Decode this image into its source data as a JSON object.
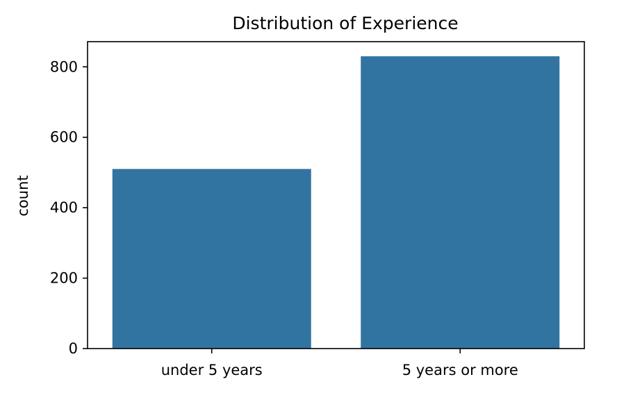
{
  "chart_data": {
    "type": "bar",
    "title": "Distribution of Experience",
    "xlabel": "",
    "ylabel": "count",
    "categories": [
      "under 5 years",
      "5 years or more"
    ],
    "values": [
      510,
      830
    ],
    "ylim": [
      0,
      871.5
    ],
    "yticks": [
      0,
      200,
      400,
      600,
      800
    ],
    "bar_color": "#3274a1",
    "grid": false,
    "legend": "none"
  }
}
